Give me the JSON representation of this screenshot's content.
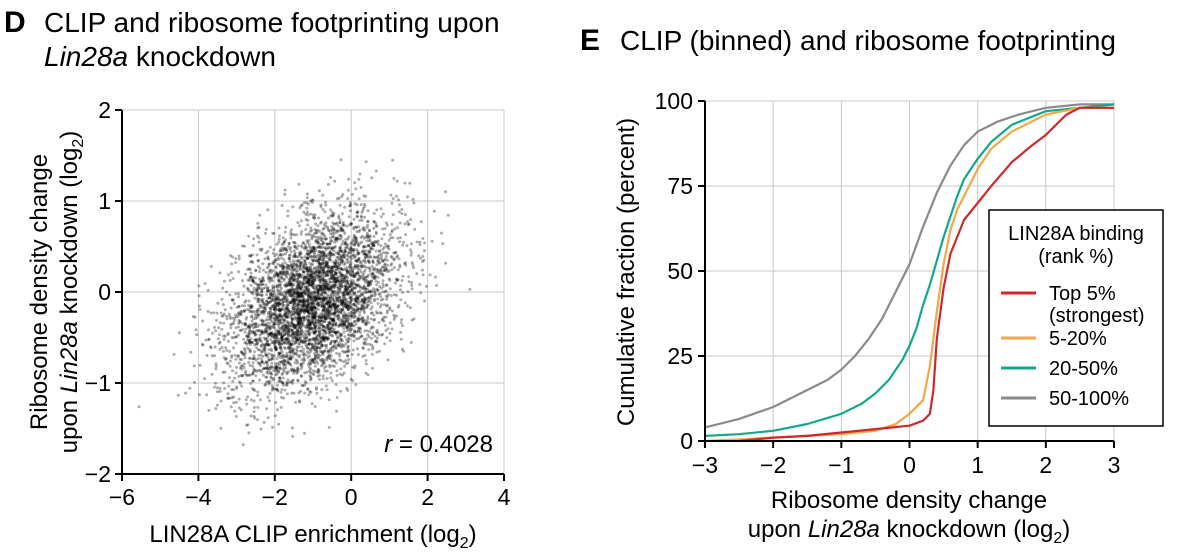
{
  "colors": {
    "point": "#000000",
    "grid": "#c8c8c8",
    "axis": "#000000",
    "top5": "#cc2a2a",
    "p5_20": "#f0a848",
    "p20_50": "#14a88a",
    "p50_100": "#8a8a8a"
  },
  "panel_d": {
    "letter": "D",
    "title_line1": "CLIP and ribosome footprinting upon",
    "title_line2_italic": "Lin28a",
    "title_line2_rest": " knockdown",
    "ylabel_line1": "Ribosome density change",
    "ylabel_line2_pre": "upon ",
    "ylabel_line2_italic": "Lin28a",
    "ylabel_line2_post": " knockdown (log",
    "ylabel_sub": "2",
    "ylabel_close": ")",
    "xlabel_pre": "LIN28A CLIP enrichment (log",
    "xlabel_sub": "2",
    "xlabel_close": ")",
    "annotation_r": "r",
    "annotation_value": " = 0.4028"
  },
  "panel_e": {
    "letter": "E",
    "title": "CLIP (binned) and ribosome footprinting",
    "ylabel": "Cumulative fraction (percent)",
    "xlabel_line1": "Ribosome density change",
    "xlabel_line2_pre": "upon ",
    "xlabel_line2_italic": "Lin28a",
    "xlabel_line2_post": " knockdown (log",
    "xlabel_sub": "2",
    "xlabel_close": ")",
    "legend_title_line1": "LIN28A binding",
    "legend_title_line2": "(rank %)"
  },
  "chart_data": [
    {
      "type": "scatter",
      "xlim": [
        -6,
        4
      ],
      "ylim": [
        -2,
        2
      ],
      "xticks": [
        -6,
        -4,
        -2,
        0,
        2,
        4
      ],
      "yticks": [
        -2,
        -1,
        0,
        1,
        2
      ],
      "xtick_labels": [
        "−6",
        "−4",
        "−2",
        "0",
        "2",
        "4"
      ],
      "ytick_labels": [
        "−2",
        "−1",
        "0",
        "1",
        "2"
      ],
      "grid": true,
      "correlation": 0.4028,
      "cloud": {
        "n_points": 4500,
        "x_mean": -1.0,
        "x_sd": 1.1,
        "y_mean": -0.1,
        "y_sd": 0.47,
        "r": 0.4028
      }
    },
    {
      "type": "line",
      "xlim": [
        -3,
        3
      ],
      "ylim": [
        0,
        100
      ],
      "xticks": [
        -3,
        -2,
        -1,
        0,
        1,
        2,
        3
      ],
      "yticks": [
        0,
        25,
        50,
        75,
        100
      ],
      "xtick_labels": [
        "−3",
        "−2",
        "−1",
        "0",
        "1",
        "2",
        "3"
      ],
      "ytick_labels": [
        "0",
        "25",
        "50",
        "75",
        "100"
      ],
      "grid": true,
      "legend_position": "right",
      "series": [
        {
          "name": "Top 5% (strongest)",
          "label_line1": "Top 5%",
          "label_line2": "(strongest)",
          "color_key": "top5",
          "x": [
            -2.5,
            -2.0,
            -1.5,
            -1.0,
            -0.5,
            0.0,
            0.2,
            0.3,
            0.35,
            0.4,
            0.5,
            0.6,
            0.7,
            0.8,
            1.0,
            1.2,
            1.5,
            1.8,
            2.0,
            2.3,
            2.5,
            3.0
          ],
          "y": [
            0,
            1,
            1.5,
            2.5,
            3.5,
            4.5,
            6,
            8,
            15,
            30,
            45,
            55,
            60,
            65,
            70,
            75,
            82,
            87,
            90,
            96,
            98,
            98
          ]
        },
        {
          "name": "5-20%",
          "label_line1": "5-20%",
          "label_line2": "",
          "color_key": "p5_20",
          "x": [
            -3.0,
            -2.5,
            -2.0,
            -1.5,
            -1.0,
            -0.5,
            -0.2,
            0.0,
            0.2,
            0.3,
            0.4,
            0.5,
            0.6,
            0.7,
            0.8,
            1.0,
            1.2,
            1.5,
            2.0,
            2.5,
            3.0
          ],
          "y": [
            0,
            0.5,
            1,
            1.5,
            2,
            3,
            5,
            8,
            12,
            22,
            38,
            52,
            62,
            68,
            72,
            80,
            86,
            91,
            96,
            98,
            98
          ]
        },
        {
          "name": "20-50%",
          "label_line1": "20-50%",
          "label_line2": "",
          "color_key": "p20_50",
          "x": [
            -3.0,
            -2.5,
            -2.0,
            -1.5,
            -1.0,
            -0.7,
            -0.5,
            -0.3,
            -0.1,
            0.0,
            0.1,
            0.2,
            0.3,
            0.4,
            0.5,
            0.6,
            0.7,
            0.8,
            1.0,
            1.2,
            1.5,
            2.0,
            2.5,
            3.0
          ],
          "y": [
            1.5,
            2,
            3,
            5,
            8,
            11,
            14,
            18,
            24,
            28,
            33,
            40,
            46,
            53,
            60,
            66,
            72,
            77,
            83,
            88,
            93,
            97,
            98,
            99
          ]
        },
        {
          "name": "50-100%",
          "label_line1": "50-100%",
          "label_line2": "",
          "color_key": "p50_100",
          "x": [
            -3.0,
            -2.5,
            -2.0,
            -1.5,
            -1.2,
            -1.0,
            -0.8,
            -0.6,
            -0.4,
            -0.2,
            0.0,
            0.2,
            0.4,
            0.6,
            0.8,
            1.0,
            1.3,
            1.6,
            2.0,
            2.5,
            3.0
          ],
          "y": [
            4,
            6.5,
            10,
            15,
            18,
            21,
            25,
            30,
            36,
            44,
            52,
            63,
            73,
            81,
            87,
            91,
            94,
            96,
            98,
            99,
            99
          ]
        }
      ]
    }
  ]
}
